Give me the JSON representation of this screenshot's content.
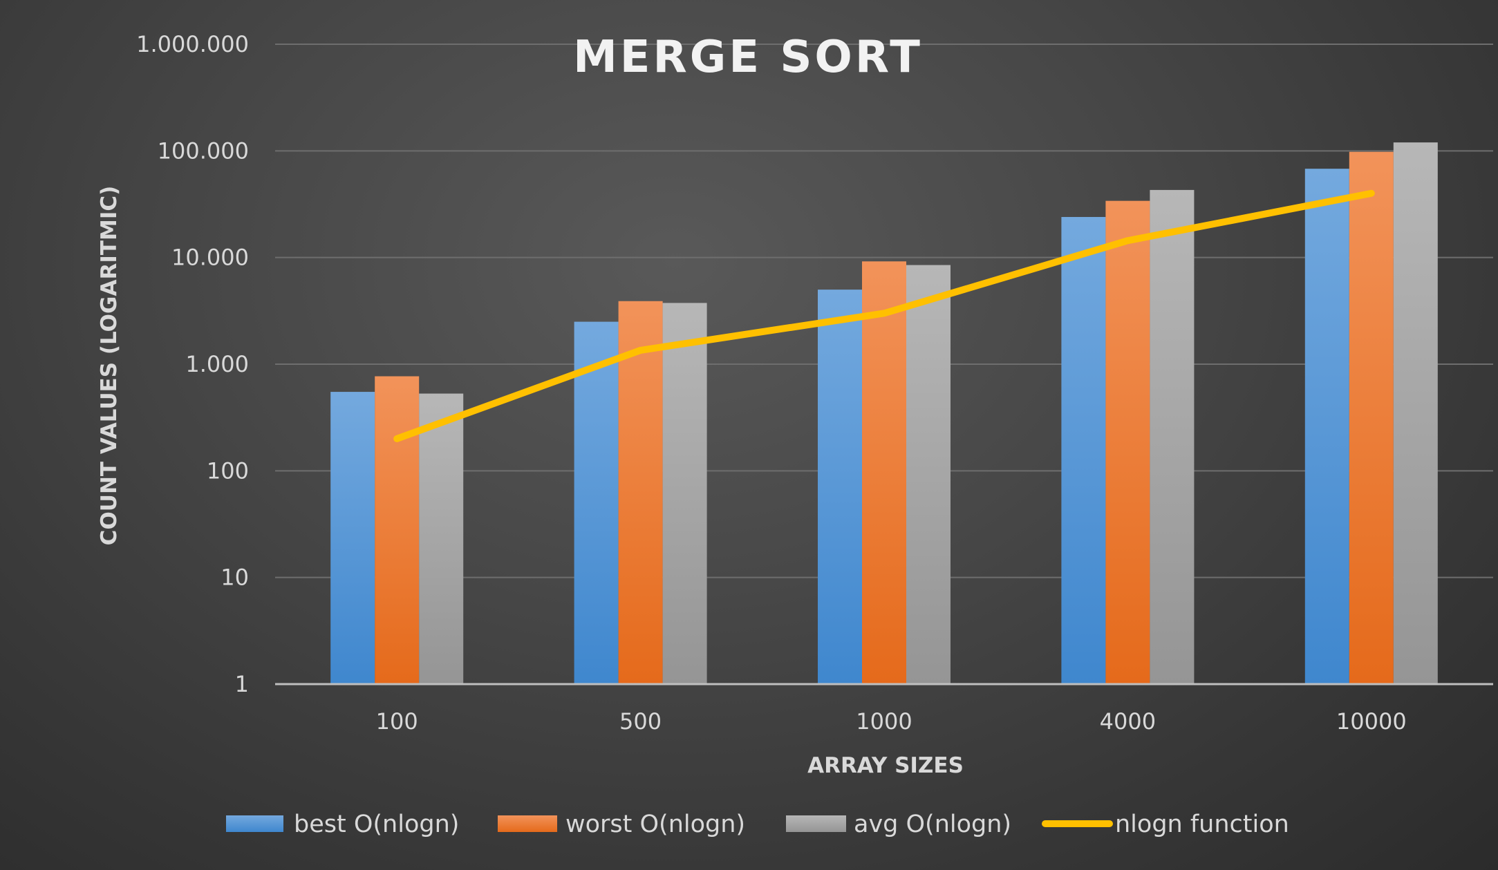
{
  "chart_data": {
    "type": "bar",
    "title": "MERGE SORT",
    "xlabel": "ARRAY SIZES",
    "ylabel": "COUNT VALUES (LOGARITMIC)",
    "yscale": "log",
    "ylim": [
      1,
      1000000
    ],
    "yticks": [
      1,
      10,
      100,
      1000,
      10000,
      100000,
      1000000
    ],
    "ytick_labels": [
      "1",
      "10",
      "100",
      "1.000",
      "10.000",
      "100.000",
      "1.000.000"
    ],
    "categories": [
      "100",
      "500",
      "1000",
      "4000",
      "10000"
    ],
    "grid": true,
    "legend_position": "bottom",
    "series": [
      {
        "name": "best O(nlogn)",
        "kind": "bar",
        "color": "#5b9bd5",
        "values": [
          550,
          2500,
          5000,
          24000,
          68000
        ]
      },
      {
        "name": "worst O(nlogn)",
        "kind": "bar",
        "color": "#ed7d31",
        "values": [
          770,
          3900,
          9200,
          34000,
          98000
        ]
      },
      {
        "name": "avg O(nlogn)",
        "kind": "bar",
        "color": "#a5a5a5",
        "values": [
          530,
          3750,
          8500,
          43000,
          120000
        ]
      },
      {
        "name": "nlogn function",
        "kind": "line",
        "color": "#ffc000",
        "values": [
          200,
          1350,
          3000,
          14400,
          40000
        ]
      }
    ]
  }
}
